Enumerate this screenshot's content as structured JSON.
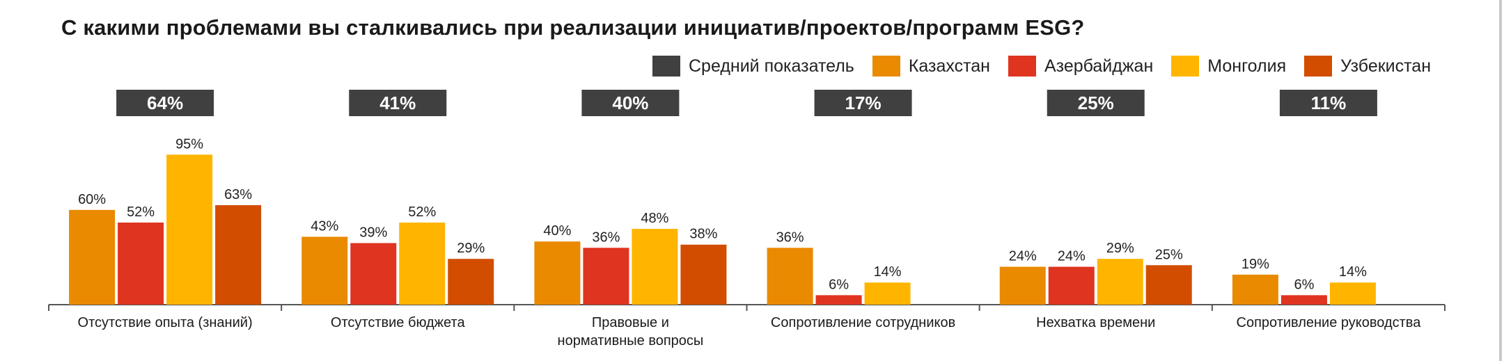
{
  "title": "С какими проблемами вы сталкивались при реализации инициатив/проектов/программ ESG?",
  "legend": [
    {
      "label": "Средний показатель",
      "color": "#404040"
    },
    {
      "label": "Казахстан",
      "color": "#e98a00"
    },
    {
      "label": "Азербайджан",
      "color": "#df3420"
    },
    {
      "label": "Монголия",
      "color": "#ffb500"
    },
    {
      "label": "Узбекистан",
      "color": "#d24d00"
    }
  ],
  "chart_data": {
    "type": "bar",
    "title": "С какими проблемами вы сталкивались при реализации инициатив/проектов/программ ESG?",
    "unit": "%",
    "categories": [
      [
        "Отсутствие опыта (знаний)"
      ],
      [
        "Отсутствие бюджета"
      ],
      [
        "Правовые и",
        "нормативные вопросы"
      ],
      [
        "Сопротивление сотрудников"
      ],
      [
        "Нехватка времени"
      ],
      [
        "Сопротивление руководства"
      ]
    ],
    "average": {
      "name": "Средний показатель",
      "values": [
        64,
        41,
        40,
        17,
        25,
        11
      ],
      "labels": [
        "64%",
        "41%",
        "40%",
        "17%",
        "25%",
        "11%"
      ]
    },
    "series": [
      {
        "name": "Казахстан",
        "color": "#e98a00",
        "values": [
          60,
          43,
          40,
          36,
          24,
          19
        ],
        "labels": [
          "60%",
          "43%",
          "40%",
          "36%",
          "24%",
          "19%"
        ]
      },
      {
        "name": "Азербайджан",
        "color": "#df3420",
        "values": [
          52,
          39,
          36,
          6,
          24,
          6
        ],
        "labels": [
          "52%",
          "39%",
          "36%",
          "6%",
          "24%",
          "6%"
        ]
      },
      {
        "name": "Монголия",
        "color": "#ffb500",
        "values": [
          95,
          52,
          48,
          14,
          29,
          14
        ],
        "labels": [
          "95%",
          "52%",
          "48%",
          "14%",
          "29%",
          "14%"
        ]
      },
      {
        "name": "Узбекистан",
        "color": "#d24d00",
        "values": [
          63,
          29,
          38,
          null,
          25,
          null
        ],
        "labels": [
          "63%",
          "29%",
          "38%",
          "",
          "25%",
          ""
        ]
      }
    ],
    "ylim": [
      0,
      100
    ],
    "grid": false,
    "legend_position": "top-right"
  }
}
